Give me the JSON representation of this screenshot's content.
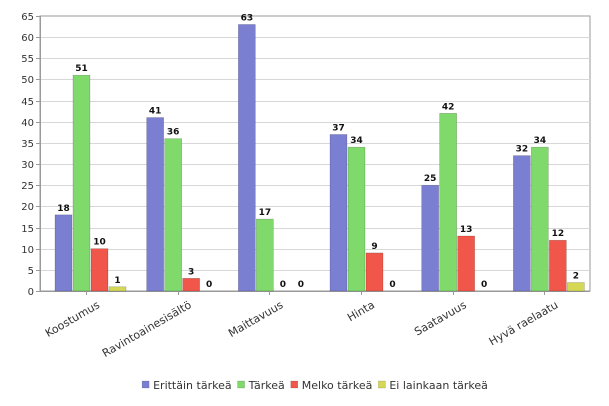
{
  "chart_data": {
    "type": "bar",
    "title": "",
    "xlabel": "",
    "ylabel": "",
    "ylim": [
      0,
      65
    ],
    "yticks": [
      0,
      5,
      10,
      15,
      20,
      25,
      30,
      35,
      40,
      45,
      50,
      55,
      60,
      65
    ],
    "grid": true,
    "legend_position": "bottom",
    "categories": [
      "Koostumus",
      "Ravintoainesisältö",
      "Maittavuus",
      "Hinta",
      "Saatavuus",
      "Hyvä raelaatu"
    ],
    "series": [
      {
        "name": "Erittäin tärkeä",
        "color": "#7b7fd2",
        "values": [
          18,
          41,
          63,
          37,
          25,
          32
        ]
      },
      {
        "name": "Tärkeä",
        "color": "#7fd96b",
        "values": [
          51,
          36,
          17,
          34,
          42,
          34
        ]
      },
      {
        "name": "Melko tärkeä",
        "color": "#f0574a",
        "values": [
          10,
          3,
          0,
          9,
          13,
          12
        ]
      },
      {
        "name": "Ei lainkaan tärkeä",
        "color": "#d4d855",
        "values": [
          1,
          0,
          0,
          0,
          0,
          2
        ]
      }
    ]
  }
}
